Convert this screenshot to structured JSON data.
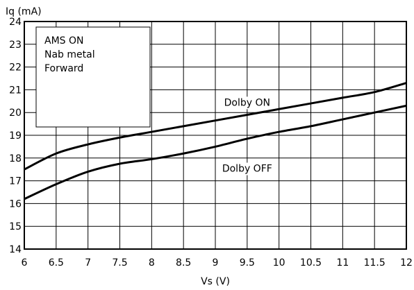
{
  "chart_data": {
    "type": "line",
    "title": "",
    "xlabel": "Vs (V)",
    "ylabel": "Iq (mA)",
    "xlim": [
      6,
      12
    ],
    "ylim": [
      14,
      24
    ],
    "xticks": [
      "6",
      "6.5",
      "7",
      "7.5",
      "8",
      "8.5",
      "9",
      "9.5",
      "10",
      "10.5",
      "11",
      "11.5",
      "12"
    ],
    "yticks": [
      "14",
      "15",
      "16",
      "17",
      "18",
      "19",
      "20",
      "21",
      "22",
      "23",
      "24"
    ],
    "grid": true,
    "legend_box": {
      "lines": [
        "AMS ON",
        "Nab metal",
        "Forward"
      ],
      "placement": "top-left"
    },
    "series": [
      {
        "name": "Dolby ON",
        "x": [
          6,
          6.5,
          7,
          7.5,
          8,
          8.5,
          9,
          9.5,
          10,
          10.5,
          11,
          11.5,
          12
        ],
        "y": [
          17.5,
          18.2,
          18.6,
          18.9,
          19.15,
          19.4,
          19.65,
          19.9,
          20.15,
          20.4,
          20.65,
          20.9,
          21.3
        ]
      },
      {
        "name": "Dolby OFF",
        "x": [
          6,
          6.5,
          7,
          7.5,
          8,
          8.5,
          9,
          9.5,
          10,
          10.5,
          11,
          11.5,
          12
        ],
        "y": [
          16.2,
          16.85,
          17.4,
          17.75,
          17.95,
          18.2,
          18.5,
          18.85,
          19.15,
          19.4,
          19.7,
          20.0,
          20.3
        ]
      }
    ],
    "series_label_positions": [
      {
        "series": "Dolby ON",
        "at_x": 9.5,
        "at_y": 20.3
      },
      {
        "series": "Dolby OFF",
        "at_x": 9.5,
        "at_y": 17.4
      }
    ]
  }
}
